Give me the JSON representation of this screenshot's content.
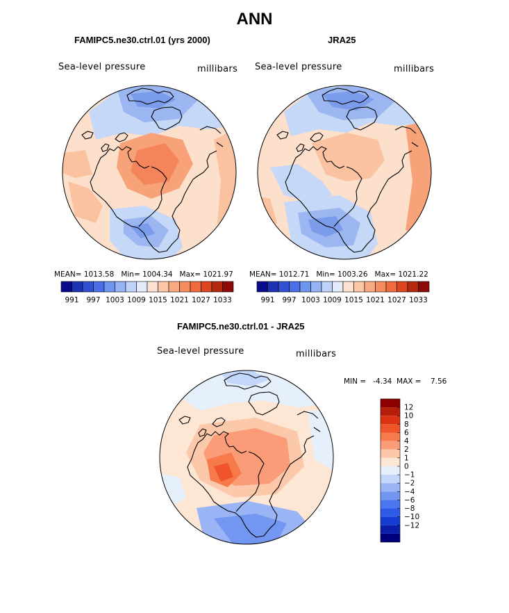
{
  "figure": {
    "title": "ANN"
  },
  "chart_data": [
    {
      "type": "heatmap",
      "projection": "north polar stereographic",
      "title": "FAMIPC5.ne30.ctrl.01 (yrs 2000)",
      "left_label": "Sea-level pressure",
      "right_label": "millibars",
      "stats": {
        "mean_label": "MEAN=",
        "mean": "1013.58",
        "min_label": "Min=",
        "min": "1004.34",
        "max_label": "Max=",
        "max": "1021.97"
      },
      "colorbar": {
        "colors": [
          "#0a0a8c",
          "#1e32b4",
          "#3250d2",
          "#4a6ee6",
          "#6e96f0",
          "#96b4f5",
          "#bed2fa",
          "#e1ebfc",
          "#fde2d2",
          "#fcc8a8",
          "#faaa82",
          "#f68c60",
          "#f06a3e",
          "#dc4620",
          "#b42810",
          "#8c0a0a"
        ],
        "tick_labels": [
          "991",
          "997",
          "1003",
          "1009",
          "1015",
          "1021",
          "1027",
          "1033"
        ]
      }
    },
    {
      "type": "heatmap",
      "projection": "north polar stereographic",
      "title": "JRA25",
      "left_label": "Sea-level pressure",
      "right_label": "millibars",
      "stats": {
        "mean_label": "MEAN=",
        "mean": "1012.71",
        "min_label": "Min=",
        "min": "1003.26",
        "max_label": "Max=",
        "max": "1021.22"
      },
      "colorbar": {
        "colors": [
          "#0a0a8c",
          "#1e32b4",
          "#3250d2",
          "#4a6ee6",
          "#6e96f0",
          "#96b4f5",
          "#bed2fa",
          "#e1ebfc",
          "#fde2d2",
          "#fcc8a8",
          "#faaa82",
          "#f68c60",
          "#f06a3e",
          "#dc4620",
          "#b42810",
          "#8c0a0a"
        ],
        "tick_labels": [
          "991",
          "997",
          "1003",
          "1009",
          "1015",
          "1021",
          "1027",
          "1033"
        ]
      }
    },
    {
      "type": "heatmap",
      "projection": "north polar stereographic",
      "title": "FAMIPC5.ne30.ctrl.01 - JRA25",
      "left_label": "Sea-level pressure",
      "right_label": "millibars",
      "stats": {
        "min_label": "MIN =",
        "min": "-4.34",
        "max_label": "MAX =",
        "max": "7.56"
      },
      "colorbar": {
        "orientation": "vertical",
        "colors": [
          "#00007f",
          "#0a1eaa",
          "#143cd2",
          "#2d5ae6",
          "#4b78f0",
          "#7396f0",
          "#9bb4f5",
          "#c3d7fa",
          "#e6f0fc",
          "#fde6d4",
          "#fcc8aa",
          "#fa9c78",
          "#f67a4c",
          "#f0542a",
          "#dc3214",
          "#b41e0a",
          "#8c0000"
        ],
        "tick_labels": [
          "12",
          "10",
          "8",
          "6",
          "4",
          "2",
          "1",
          "0",
          "−1",
          "−2",
          "−4",
          "−6",
          "−8",
          "−10",
          "−12"
        ]
      }
    }
  ]
}
